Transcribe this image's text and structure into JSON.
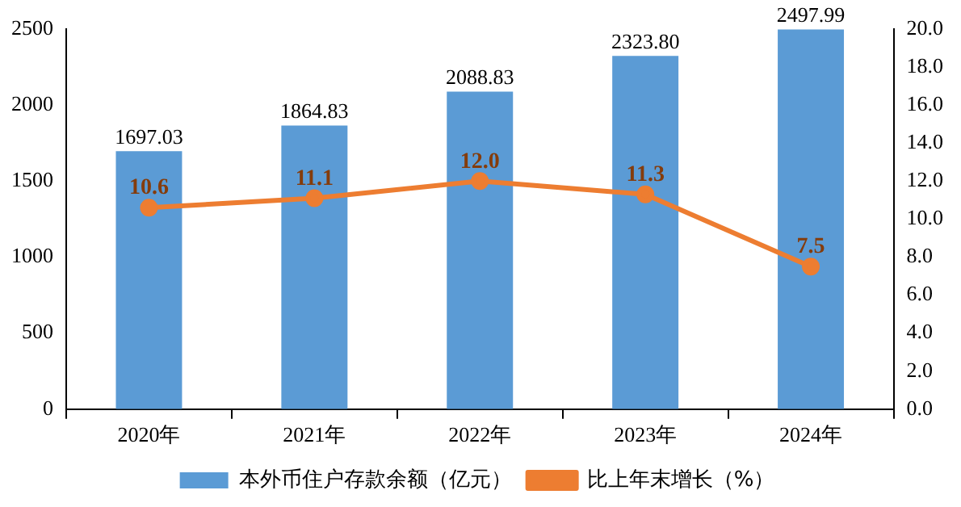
{
  "chart_data": {
    "type": "bar",
    "categories": [
      "2020年",
      "2021年",
      "2022年",
      "2023年",
      "2024年"
    ],
    "series": [
      {
        "name": "本外币住户存款余额（亿元）",
        "color": "#5b9bd5",
        "values": [
          1697.03,
          1864.83,
          2088.83,
          2323.8,
          2497.99
        ],
        "value_labels": [
          "1697.03",
          "1864.83",
          "2088.83",
          "2323.80",
          "2497.99"
        ]
      },
      {
        "name": "比上年末增长（%）",
        "type": "line",
        "axis": "y2",
        "color": "#ed7d31",
        "values": [
          10.6,
          11.1,
          12.0,
          11.3,
          7.5
        ],
        "value_labels": [
          "10.6",
          "11.1",
          "12.0",
          "11.3",
          "7.5"
        ]
      }
    ],
    "ylim": [
      0,
      2500
    ],
    "yticks": [
      0,
      500,
      1000,
      1500,
      2000,
      2500
    ],
    "y2lim": [
      0,
      20
    ],
    "y2ticks": [
      {
        "value": 0,
        "label": "0.0"
      },
      {
        "value": 2,
        "label": "2.0"
      },
      {
        "value": 4,
        "label": "4.0"
      },
      {
        "value": 6,
        "label": "6.0"
      },
      {
        "value": 8,
        "label": "8.0"
      },
      {
        "value": 10,
        "label": "10.0"
      },
      {
        "value": 12,
        "label": "12.0"
      },
      {
        "value": 14,
        "label": "14.0"
      },
      {
        "value": 16,
        "label": "16.0"
      },
      {
        "value": 18,
        "label": "18.0"
      },
      {
        "value": 20,
        "label": "20.0"
      }
    ],
    "grid": false,
    "legend": "bottom",
    "marker": "circle",
    "line_style": "solid"
  }
}
